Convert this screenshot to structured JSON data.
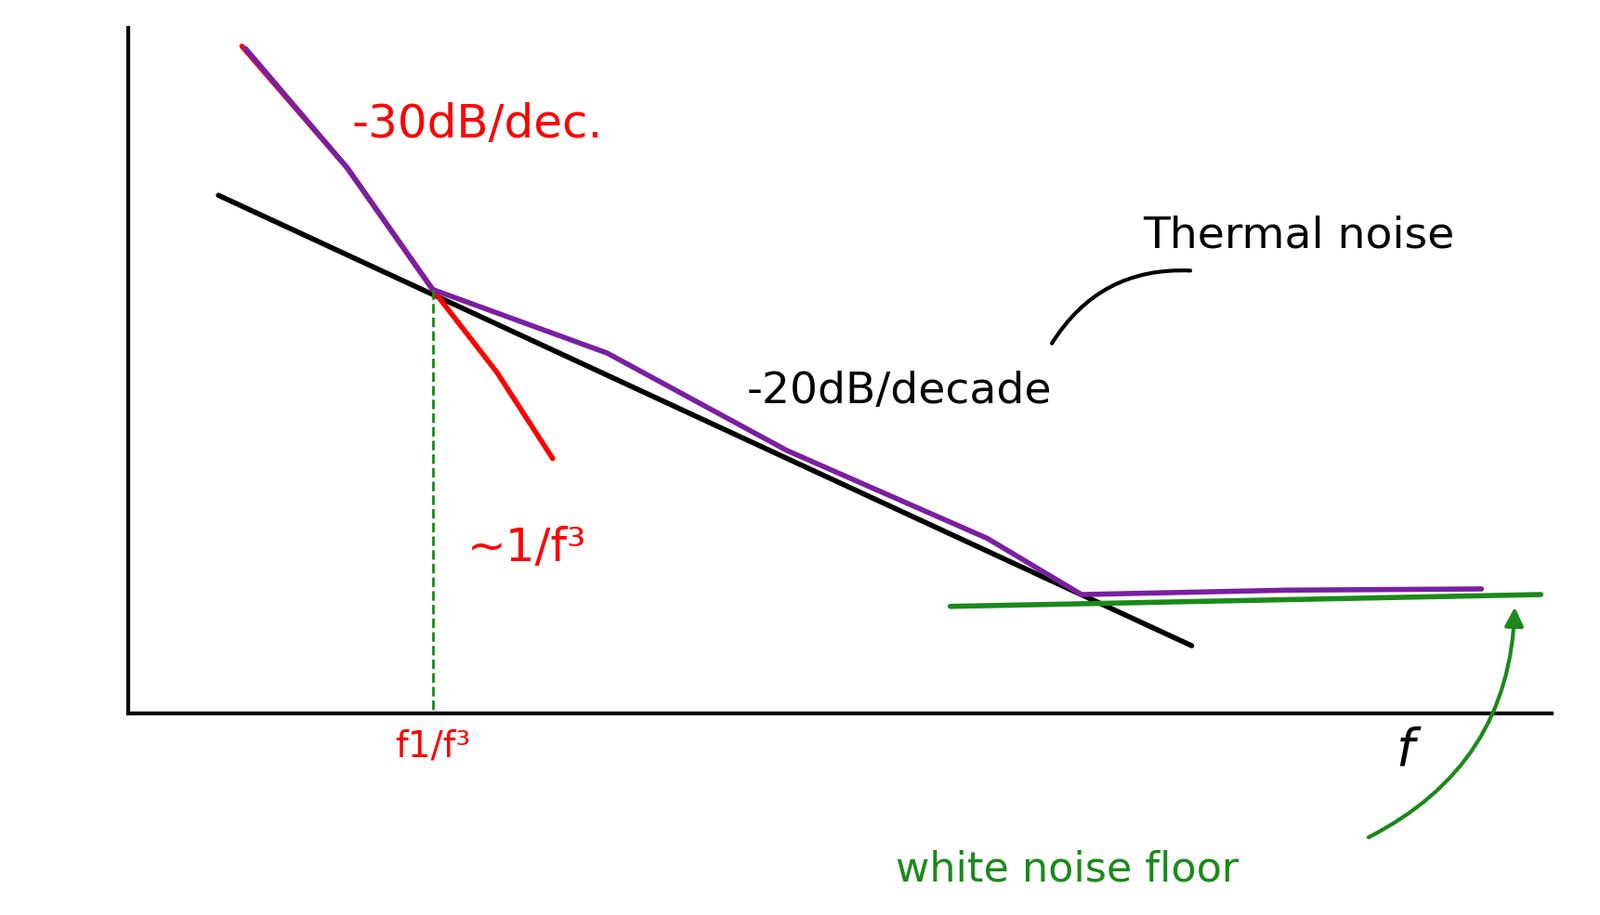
{
  "chart_data": {
    "type": "line",
    "x_label": "f",
    "xlim": [
      0,
      115
    ],
    "ylim": [
      0,
      110
    ],
    "xticks": [
      {
        "value": 24.6,
        "label": "f1/f³"
      }
    ],
    "yticks": [],
    "tick_labels": "x",
    "grid": false,
    "series": [
      {
        "color": "#000000",
        "line_style": "solid",
        "x": [
          7.3,
          85.9
        ],
        "values": [
          83.1,
          10.9
        ]
      },
      {
        "color": "#ff0000",
        "line_style": "solid",
        "x": [
          9.2,
          17.7,
          24.6,
          29.8,
          34.3
        ],
        "values": [
          107.0,
          87.5,
          68.0,
          54.7,
          40.9
        ]
      },
      {
        "color": "#1a8a1a",
        "line_style": "solid",
        "x": [
          66.4,
          114.1
        ],
        "values": [
          17.2,
          19.1
        ]
      },
      {
        "color": "#7a1fa2",
        "line_style": "solid",
        "x": [
          9.5,
          17.7,
          24.6,
          38.7,
          53.2,
          69.4,
          77.0,
          93.5,
          109.3
        ],
        "values": [
          106.6,
          87.5,
          68.0,
          57.8,
          42.2,
          28.1,
          19.1,
          19.8,
          20.0
        ]
      },
      {
        "color": "#1a8a1a",
        "line_style": "dashed",
        "x": [
          24.6,
          24.6
        ],
        "values": [
          68.0,
          0
        ]
      }
    ],
    "annotations": [
      {
        "text": "-30dB/dec.",
        "color": "#ff0000"
      },
      {
        "text": "~1/f³",
        "color": "#ff0000"
      },
      {
        "text": "-20dB/decade",
        "color": "#000000"
      },
      {
        "text": "Thermal noise",
        "color": "#000000"
      },
      {
        "text": "white noise floor",
        "color": "#1a8a1a"
      }
    ]
  }
}
